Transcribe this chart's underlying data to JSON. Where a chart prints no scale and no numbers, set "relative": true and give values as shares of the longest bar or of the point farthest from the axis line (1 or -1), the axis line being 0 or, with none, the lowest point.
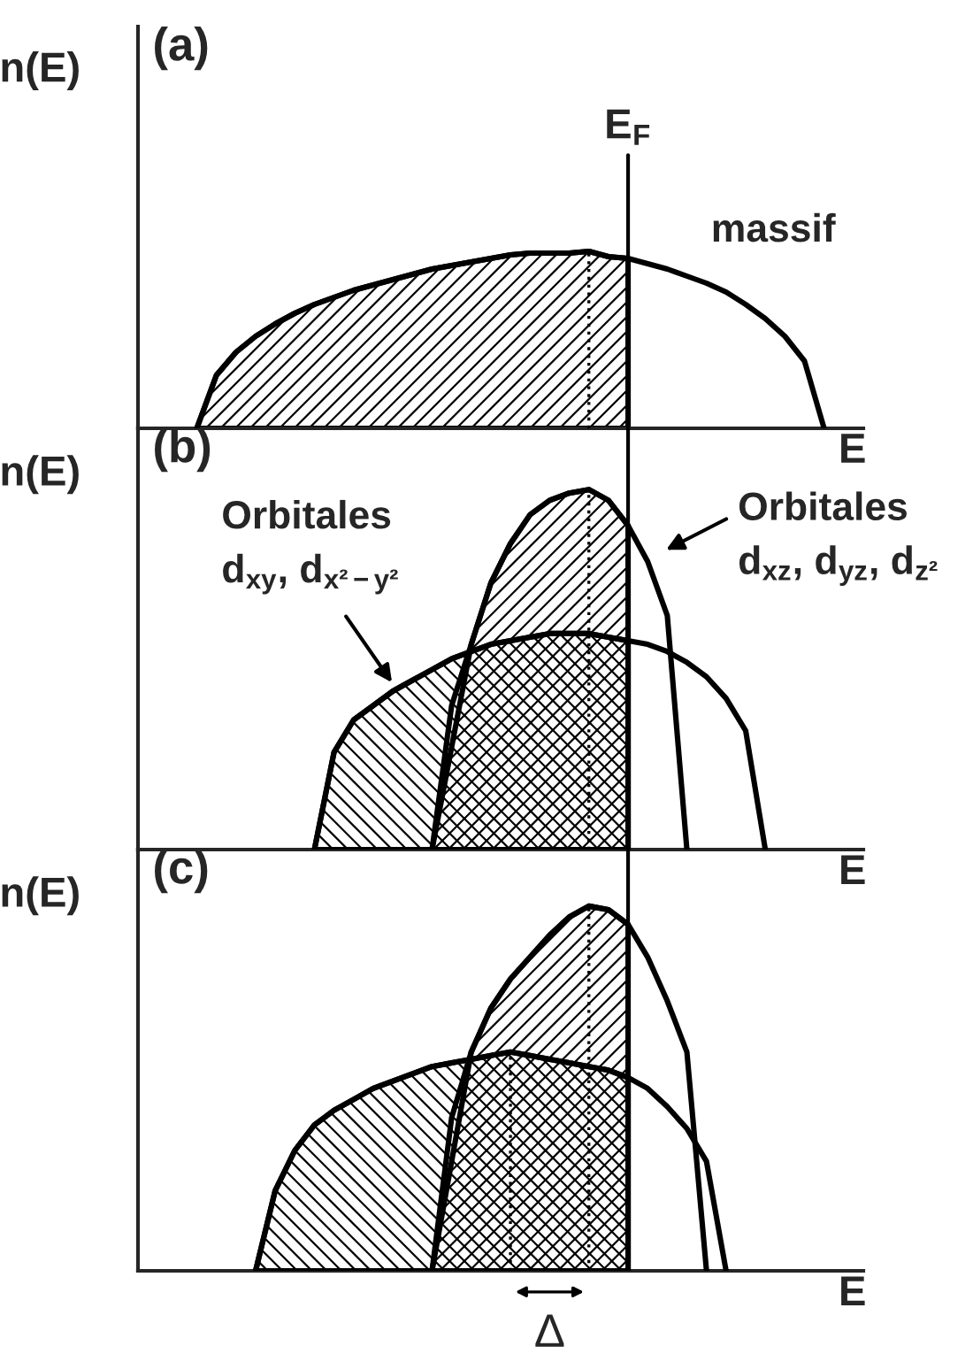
{
  "chart_data": [
    {
      "type": "area",
      "title": "(a)",
      "xlabel": "E",
      "ylabel": "n(E)",
      "relative": true,
      "grid": false,
      "categories": [
        null,
        null,
        null,
        null,
        null,
        null,
        null,
        null,
        null,
        null,
        null,
        null,
        null,
        null,
        null,
        null,
        null,
        null,
        null,
        null,
        null,
        null,
        null,
        null,
        null,
        null,
        null,
        null,
        null,
        null,
        null,
        null,
        null,
        null,
        null,
        null,
        null,
        null
      ],
      "series": [
        {
          "color": "#000000",
          "values": [
            null,
            null,
            null,
            0,
            0.3,
            0.43,
            0.52,
            0.59,
            0.65,
            0.7,
            0.74,
            0.78,
            0.81,
            0.84,
            0.87,
            0.9,
            0.92,
            0.94,
            0.96,
            0.98,
            0.99,
            0.99,
            0.99,
            1.0,
            0.97,
            0.96,
            null,
            null,
            null,
            null,
            null,
            null,
            null,
            null,
            null,
            null,
            null,
            null
          ]
        },
        {
          "type": "line",
          "color": "#000000",
          "values": [
            null,
            null,
            null,
            0,
            0.3,
            0.43,
            0.52,
            0.59,
            0.65,
            0.7,
            0.74,
            0.78,
            0.81,
            0.84,
            0.87,
            0.9,
            0.92,
            0.94,
            0.96,
            0.98,
            0.99,
            0.99,
            0.99,
            1.0,
            0.97,
            0.96,
            0.93,
            0.9,
            0.86,
            0.82,
            0.77,
            0.7,
            0.62,
            0.52,
            0.38,
            0,
            null,
            null
          ]
        }
      ],
      "annotations": [
        "E$_{F}$",
        "massif"
      ]
    },
    {
      "type": "area",
      "title": "(b)",
      "xlabel": "E",
      "ylabel": "n(E)",
      "relative": true,
      "grid": false,
      "categories": [
        null,
        null,
        null,
        null,
        null,
        null,
        null,
        null,
        null,
        null,
        null,
        null,
        null,
        null,
        null,
        null,
        null,
        null,
        null,
        null,
        null,
        null,
        null,
        null,
        null,
        null,
        null,
        null,
        null,
        null,
        null,
        null,
        null,
        null,
        null,
        null,
        null,
        null
      ],
      "series": [
        {
          "color": "#000000",
          "values": [
            null,
            null,
            null,
            null,
            null,
            null,
            null,
            null,
            null,
            null,
            null,
            null,
            null,
            null,
            null,
            0,
            null,
            0.57,
            0.74,
            0.85,
            0.93,
            0.97,
            0.99,
            1.0,
            0.97,
            0.9,
            null,
            null,
            null,
            null,
            null,
            null,
            null,
            null,
            null,
            null,
            null,
            null
          ]
        },
        {
          "type": "line",
          "color": "#000000",
          "values": [
            null,
            null,
            null,
            null,
            null,
            null,
            null,
            null,
            null,
            null,
            null,
            null,
            null,
            null,
            null,
            0,
            0.4,
            0.57,
            0.74,
            0.85,
            0.93,
            0.97,
            0.99,
            1.0,
            0.97,
            0.9,
            0.8,
            0.65,
            0,
            null,
            null,
            null,
            null,
            null,
            null,
            null,
            null,
            null
          ]
        },
        {
          "color": "#000000",
          "values": [
            null,
            null,
            null,
            null,
            null,
            null,
            null,
            null,
            null,
            0,
            0.27,
            0.36,
            0.4,
            0.44,
            0.47,
            0.5,
            0.53,
            0.55,
            0.57,
            0.58,
            0.59,
            0.6,
            0.6,
            0.6,
            0.59,
            0.58,
            null,
            null,
            null,
            null,
            null,
            null,
            null,
            null,
            null,
            null,
            null,
            null
          ]
        },
        {
          "type": "line",
          "color": "#000000",
          "values": [
            null,
            null,
            null,
            null,
            null,
            null,
            null,
            null,
            null,
            0,
            0.27,
            0.36,
            0.4,
            0.44,
            0.47,
            0.5,
            0.53,
            0.55,
            0.57,
            0.58,
            0.59,
            0.6,
            0.6,
            0.6,
            0.59,
            0.58,
            0.57,
            0.55,
            0.52,
            0.48,
            0.42,
            0.33,
            0,
            null,
            null,
            null,
            null,
            null
          ]
        }
      ],
      "annotations": [
        "Orbitales\nd$_{xy}$, d$_{x²−y²}$",
        "Orbitales\nd$_{xz}$, d$_{yz}$, d$_{z²}$"
      ]
    },
    {
      "type": "area",
      "title": "(c)",
      "xlabel": "E",
      "ylabel": "n(E)",
      "relative": true,
      "grid": false,
      "categories": [
        null,
        null,
        null,
        null,
        null,
        null,
        null,
        null,
        null,
        null,
        null,
        null,
        null,
        null,
        null,
        null,
        null,
        null,
        null,
        null,
        null,
        null,
        null,
        null,
        null,
        null,
        null,
        null,
        null,
        null,
        null,
        null,
        null,
        null,
        null,
        null,
        null,
        null
      ],
      "series": [
        {
          "color": "#000000",
          "values": [
            null,
            null,
            null,
            null,
            null,
            null,
            null,
            null,
            null,
            null,
            null,
            null,
            null,
            null,
            null,
            0,
            null,
            0.6,
            0.72,
            0.8,
            0.86,
            0.92,
            0.97,
            1.0,
            0.99,
            0.95,
            null,
            null,
            null,
            null,
            null,
            null,
            null,
            null,
            null,
            null,
            null,
            null
          ]
        },
        {
          "type": "line",
          "color": "#000000",
          "values": [
            null,
            null,
            null,
            null,
            null,
            null,
            null,
            null,
            null,
            null,
            null,
            null,
            null,
            null,
            null,
            0,
            0.42,
            0.6,
            0.72,
            0.8,
            0.86,
            0.92,
            0.97,
            1.0,
            0.99,
            0.95,
            0.86,
            0.74,
            0.6,
            0,
            null,
            null,
            null,
            null,
            null,
            null,
            null,
            null
          ]
        },
        {
          "color": "#000000",
          "values": [
            null,
            null,
            null,
            null,
            null,
            null,
            0,
            0.22,
            0.33,
            0.4,
            0.44,
            0.47,
            0.5,
            0.52,
            0.54,
            0.56,
            0.57,
            0.58,
            0.59,
            0.6,
            0.59,
            0.58,
            0.57,
            0.56,
            0.55,
            0.53,
            null,
            null,
            null,
            null,
            null,
            null,
            null,
            null,
            null,
            null,
            null,
            null
          ]
        },
        {
          "type": "line",
          "color": "#000000",
          "values": [
            null,
            null,
            null,
            null,
            null,
            null,
            0,
            0.22,
            0.33,
            0.4,
            0.44,
            0.47,
            0.5,
            0.52,
            0.54,
            0.56,
            0.57,
            0.58,
            0.59,
            0.6,
            0.59,
            0.58,
            0.57,
            0.56,
            0.55,
            0.53,
            0.5,
            0.45,
            0.39,
            0.3,
            0,
            null,
            null,
            null,
            null,
            null,
            null,
            null
          ]
        }
      ],
      "annotations": [
        "Δ"
      ]
    }
  ]
}
